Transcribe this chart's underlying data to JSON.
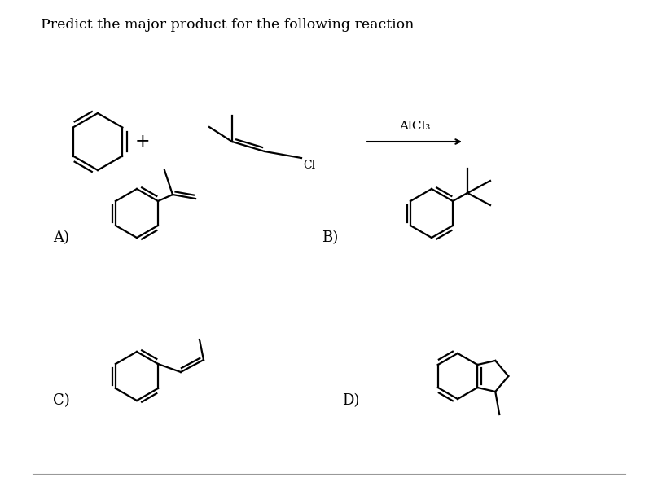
{
  "title": "Predict the major product for the following reaction",
  "background_color": "#ffffff",
  "text_color": "#000000",
  "title_fontsize": 12.5,
  "label_fontsize": 13,
  "alcl3_label": "AlCl₃",
  "cl_label": "Cl"
}
